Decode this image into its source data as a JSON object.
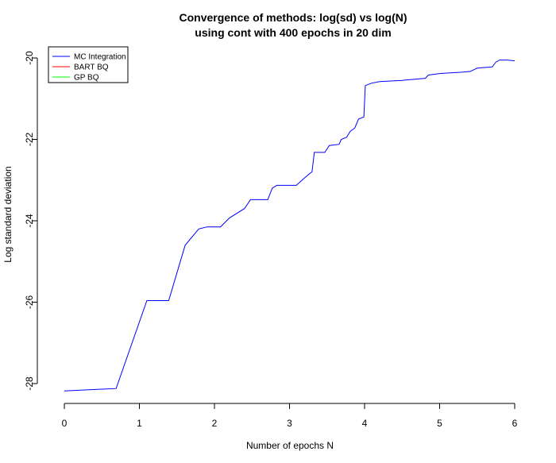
{
  "chart_data": {
    "type": "line",
    "title": "Convergence of methods: log(sd) vs log(N)",
    "subtitle": "using cont with 400 epochs in 20 dim",
    "xlabel": "Number of epochs N",
    "ylabel": "Log standard deviation",
    "xlim": [
      0,
      6
    ],
    "ylim": [
      -28.2,
      -19.8
    ],
    "x_ticks": [
      0,
      1,
      2,
      3,
      4,
      5,
      6
    ],
    "y_ticks": [
      -28,
      -26,
      -24,
      -22,
      -20
    ],
    "x_tick_labels": [
      "0",
      "1",
      "2",
      "3",
      "4",
      "5",
      "6"
    ],
    "y_tick_labels": [
      "-28",
      "-26",
      "-24",
      "-22",
      "-20"
    ],
    "legend": {
      "position": "top-left",
      "entries": [
        {
          "name": "MC Integration",
          "color": "#0000ff"
        },
        {
          "name": "BART BQ",
          "color": "#ff0000"
        },
        {
          "name": "GP BQ",
          "color": "#00ff00"
        }
      ]
    },
    "series": [
      {
        "name": "MC Integration",
        "color": "#0000ff",
        "points": [
          [
            0.0,
            -28.18
          ],
          [
            0.69,
            -28.12
          ],
          [
            1.1,
            -25.96
          ],
          [
            1.39,
            -25.96
          ],
          [
            1.61,
            -24.6
          ],
          [
            1.79,
            -24.2
          ],
          [
            1.9,
            -24.15
          ],
          [
            2.08,
            -24.15
          ],
          [
            2.2,
            -23.93
          ],
          [
            2.4,
            -23.7
          ],
          [
            2.48,
            -23.48
          ],
          [
            2.71,
            -23.48
          ],
          [
            2.77,
            -23.2
          ],
          [
            2.83,
            -23.13
          ],
          [
            3.09,
            -23.13
          ],
          [
            3.18,
            -22.98
          ],
          [
            3.26,
            -22.85
          ],
          [
            3.3,
            -22.8
          ],
          [
            3.33,
            -22.32
          ],
          [
            3.47,
            -22.32
          ],
          [
            3.53,
            -22.15
          ],
          [
            3.66,
            -22.12
          ],
          [
            3.69,
            -22.0
          ],
          [
            3.76,
            -21.95
          ],
          [
            3.81,
            -21.8
          ],
          [
            3.87,
            -21.72
          ],
          [
            3.92,
            -21.5
          ],
          [
            3.99,
            -21.45
          ],
          [
            4.01,
            -20.68
          ],
          [
            4.09,
            -20.62
          ],
          [
            4.2,
            -20.58
          ],
          [
            4.5,
            -20.55
          ],
          [
            4.81,
            -20.5
          ],
          [
            4.85,
            -20.42
          ],
          [
            5.01,
            -20.38
          ],
          [
            5.3,
            -20.35
          ],
          [
            5.41,
            -20.33
          ],
          [
            5.5,
            -20.25
          ],
          [
            5.7,
            -20.22
          ],
          [
            5.75,
            -20.1
          ],
          [
            5.8,
            -20.05
          ],
          [
            5.9,
            -20.05
          ],
          [
            6.0,
            -20.07
          ]
        ]
      }
    ]
  }
}
